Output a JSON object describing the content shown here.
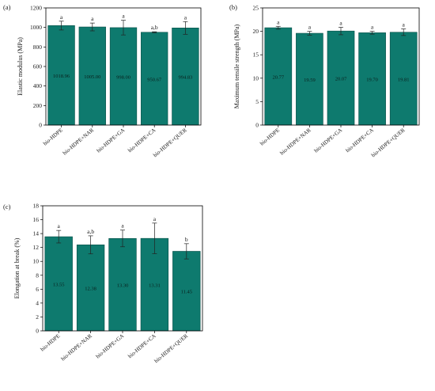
{
  "colors": {
    "bar": "#0e7a6e",
    "bar_edge": "#0a4f47",
    "axis": "#000000",
    "text": "#1a1a1a"
  },
  "chart_data": [
    {
      "type": "bar",
      "panel_label": "(a)",
      "ylabel": "Elastic modulus (MPa)",
      "ylim": [
        0,
        1200
      ],
      "yticks": [
        0,
        200,
        400,
        600,
        800,
        1000,
        1200
      ],
      "categories": [
        "bio-HDPE",
        "bio-HDPE+NAR",
        "bio-HDPE+GA",
        "bio-HDPE+CA",
        "bio-HDPE+QUER"
      ],
      "values": [
        1018.96,
        1005.0,
        998.0,
        950.67,
        994.83
      ],
      "errors": [
        45,
        40,
        75,
        5,
        65
      ],
      "value_labels": [
        "1018.96",
        "1005.00",
        "998.00",
        "950.67",
        "994.83"
      ],
      "significance": [
        "a",
        "a",
        "a",
        "a,b",
        "a"
      ]
    },
    {
      "type": "bar",
      "panel_label": "(b)",
      "ylabel": "Maximum tensile strength (MPa)",
      "ylim": [
        0,
        25
      ],
      "yticks": [
        0,
        5,
        10,
        15,
        20,
        25
      ],
      "categories": [
        "bio-HDPE",
        "bio-HDPE+NAR",
        "bio-HDPE+GA",
        "bio-HDPE+CA",
        "bio-HDPE+QUER"
      ],
      "values": [
        20.77,
        19.59,
        20.07,
        19.7,
        19.81
      ],
      "errors": [
        0.3,
        0.4,
        0.8,
        0.3,
        0.7
      ],
      "value_labels": [
        "20.77",
        "19.59",
        "20.07",
        "19.70",
        "19.81"
      ],
      "significance": [
        "a",
        "a",
        "a",
        "a",
        "a"
      ]
    },
    {
      "type": "bar",
      "panel_label": "(c)",
      "ylabel": "Elongation at break (%)",
      "ylim": [
        0,
        18
      ],
      "yticks": [
        0,
        2,
        4,
        6,
        8,
        10,
        12,
        14,
        16,
        18
      ],
      "categories": [
        "bio-HDPE",
        "bio-HDPE+NAR",
        "bio-HDPE+GA",
        "bio-HDPE+CA",
        "bio-HDPE+QUER"
      ],
      "values": [
        13.55,
        12.38,
        13.3,
        13.31,
        11.45
      ],
      "errors": [
        0.9,
        1.3,
        1.2,
        2.2,
        1.1
      ],
      "value_labels": [
        "13.55",
        "12.38",
        "13.30",
        "13.31",
        "11.45"
      ],
      "significance": [
        "a",
        "a,b",
        "a",
        "a",
        "b"
      ]
    }
  ]
}
